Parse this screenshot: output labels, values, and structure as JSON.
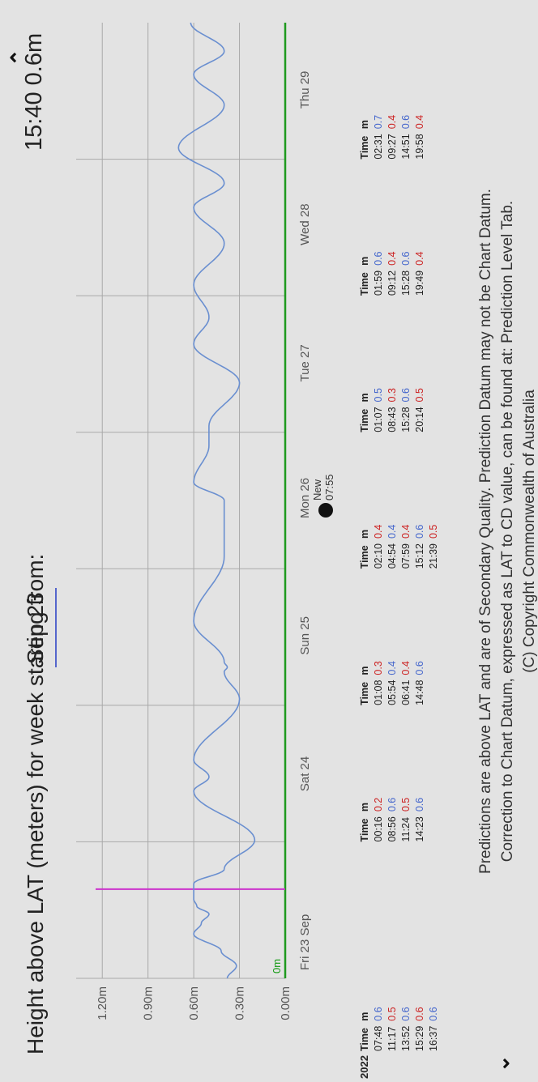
{
  "header": {
    "title": "Height above LAT (meters) for week starting from:",
    "date": "Sep 23",
    "readout": "15:40 0.6m"
  },
  "nav": {
    "prev_icon": "chevron-up-icon",
    "next_icon": "chevron-down-icon"
  },
  "colors": {
    "tide_line": "#6a8fd0",
    "zero_line": "#1f9a1f",
    "now_marker": "#cc33cc",
    "high": "#4466cc",
    "low": "#cc2222"
  },
  "chart_data": {
    "type": "line",
    "title": "Height above LAT (meters) for week starting from: Sep 23",
    "ylim": [
      0,
      1.35
    ],
    "yticks": [
      0.0,
      0.3,
      0.6,
      0.9,
      1.2
    ],
    "ytick_labels": [
      "0.00m",
      "0.30m",
      "0.60m",
      "0.90m",
      "1.20m"
    ],
    "zero_label": "0m",
    "day_labels": [
      "Fri 23 Sep",
      "Sat 24",
      "Sun 25",
      "Mon 26",
      "Tue 27",
      "Wed 28",
      "Thu 29"
    ],
    "days": 7,
    "moon": {
      "phase": "New",
      "time": "07:55",
      "day_index": 3
    },
    "now_marker_hours": 15.67,
    "series": [
      {
        "values": [
          [
            0,
            0.38
          ],
          [
            2.2,
            0.32
          ],
          [
            4.8,
            0.42
          ],
          [
            7.8,
            0.6
          ],
          [
            9.7,
            0.55
          ],
          [
            11.3,
            0.5
          ],
          [
            12.7,
            0.58
          ],
          [
            13.9,
            0.6
          ],
          [
            15.0,
            0.6
          ],
          [
            16.6,
            0.6
          ],
          [
            19.2,
            0.4
          ],
          [
            24.3,
            0.2
          ],
          [
            32.9,
            0.6
          ],
          [
            35.4,
            0.5
          ],
          [
            38.4,
            0.6
          ],
          [
            49.1,
            0.3
          ],
          [
            53.9,
            0.4
          ],
          [
            54.7,
            0.38
          ],
          [
            55.6,
            0.4
          ],
          [
            62.8,
            0.6
          ],
          [
            74.2,
            0.4
          ],
          [
            76.9,
            0.4
          ],
          [
            80.0,
            0.4
          ],
          [
            84.0,
            0.4
          ],
          [
            87.2,
            0.6
          ],
          [
            93.7,
            0.5
          ],
          [
            97.1,
            0.5
          ],
          [
            104.7,
            0.3
          ],
          [
            111.5,
            0.6
          ],
          [
            116.2,
            0.5
          ],
          [
            121.9,
            0.6
          ],
          [
            129.2,
            0.4
          ],
          [
            135.5,
            0.6
          ],
          [
            139.8,
            0.4
          ],
          [
            146.0,
            0.7
          ],
          [
            153.5,
            0.4
          ],
          [
            158.9,
            0.6
          ],
          [
            163.0,
            0.4
          ],
          [
            168,
            0.62
          ]
        ]
      }
    ]
  },
  "tide_tables": [
    {
      "day": "Fri 23 Sep",
      "head_time": "Time",
      "head_m": "m",
      "rows": [
        [
          "07:48",
          "0.6",
          "hi"
        ],
        [
          "11:17",
          "0.5",
          "lo"
        ],
        [
          "13:52",
          "0.6",
          "hi"
        ],
        [
          "15:29",
          "0.6",
          "lo"
        ],
        [
          "16:37",
          "0.6",
          "hi"
        ]
      ]
    },
    {
      "day": "Sat 24",
      "head_time": "Time",
      "head_m": "m",
      "rows": [
        [
          "00:16",
          "0.2",
          "lo"
        ],
        [
          "08:56",
          "0.6",
          "hi"
        ],
        [
          "11:24",
          "0.5",
          "lo"
        ],
        [
          "14:23",
          "0.6",
          "hi"
        ]
      ]
    },
    {
      "day": "Sun 25",
      "head_time": "Time",
      "head_m": "m",
      "rows": [
        [
          "01:08",
          "0.3",
          "lo"
        ],
        [
          "05:54",
          "0.4",
          "hi"
        ],
        [
          "06:41",
          "0.4",
          "lo"
        ],
        [
          "14:48",
          "0.6",
          "hi"
        ]
      ]
    },
    {
      "day": "Mon 26",
      "head_time": "Time",
      "head_m": "m",
      "rows": [
        [
          "02:10",
          "0.4",
          "lo"
        ],
        [
          "04:54",
          "0.4",
          "hi"
        ],
        [
          "07:59",
          "0.4",
          "lo"
        ],
        [
          "15:12",
          "0.6",
          "hi"
        ],
        [
          "21:39",
          "0.5",
          "lo"
        ]
      ]
    },
    {
      "day": "Tue 27",
      "head_time": "Time",
      "head_m": "m",
      "rows": [
        [
          "01:07",
          "0.5",
          "hi"
        ],
        [
          "08:43",
          "0.3",
          "lo"
        ],
        [
          "15:28",
          "0.6",
          "hi"
        ],
        [
          "20:14",
          "0.5",
          "lo"
        ]
      ]
    },
    {
      "day": "Wed 28",
      "head_time": "Time",
      "head_m": "m",
      "rows": [
        [
          "01:59",
          "0.6",
          "hi"
        ],
        [
          "09:12",
          "0.4",
          "lo"
        ],
        [
          "15:28",
          "0.6",
          "hi"
        ],
        [
          "19:49",
          "0.4",
          "lo"
        ]
      ]
    },
    {
      "day": "Thu 29",
      "head_time": "Time",
      "head_m": "m",
      "rows": [
        [
          "02:31",
          "0.7",
          "hi"
        ],
        [
          "09:27",
          "0.4",
          "lo"
        ],
        [
          "14:51",
          "0.6",
          "hi"
        ],
        [
          "19:58",
          "0.4",
          "lo"
        ]
      ]
    }
  ],
  "year": "2022",
  "footer": {
    "line1": "Predictions are above LAT and are of Secondary Quality. Prediction Datum may not be Chart Datum.",
    "line2": "Correction to Chart Datum, expressed as LAT to CD value, can be found at: Prediction Level Tab.",
    "line3": "(C) Copyright Commonwealth of Australia"
  }
}
